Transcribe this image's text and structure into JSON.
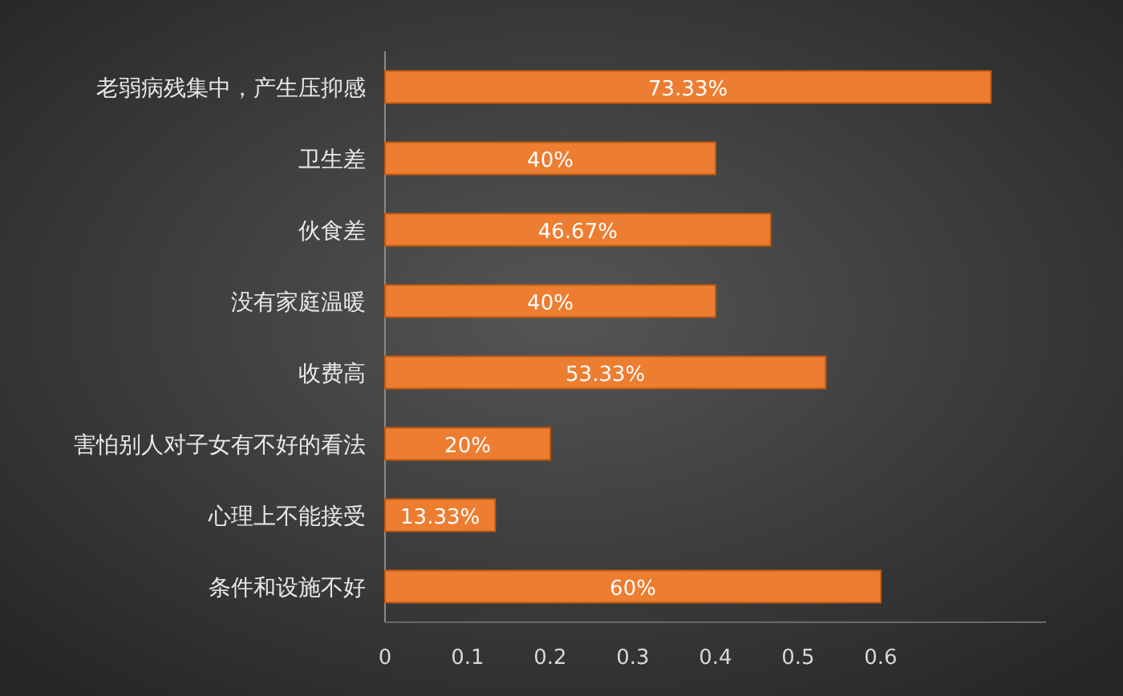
{
  "chart_data": {
    "type": "bar",
    "orientation": "horizontal",
    "categories": [
      "老弱病残集中，产生压抑感",
      "卫生差",
      "伙食差",
      "没有家庭温暖",
      "收费高",
      "害怕别人对子女有不好的看法",
      "心理上不能接受",
      "条件和设施不好"
    ],
    "values": [
      0.7333,
      0.4,
      0.4667,
      0.4,
      0.5333,
      0.2,
      0.1333,
      0.6
    ],
    "value_labels": [
      "73.33%",
      "40%",
      "46.67%",
      "40%",
      "53.33%",
      "20%",
      "13.33%",
      "60%"
    ],
    "color": "#ed7d31",
    "xlim": [
      0,
      0.8
    ],
    "xticks": [
      0,
      0.1,
      0.2,
      0.3,
      0.4,
      0.5,
      0.6
    ]
  }
}
